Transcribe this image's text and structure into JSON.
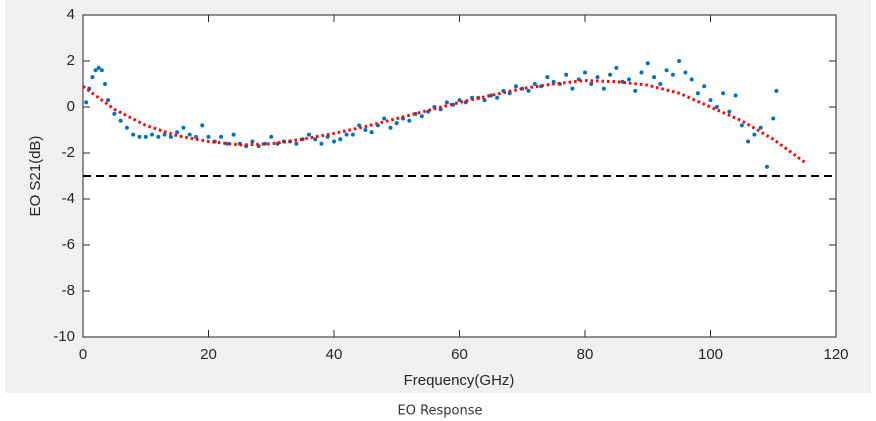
{
  "chart_data": {
    "type": "scatter",
    "xlabel": "Frequency(GHz)",
    "ylabel": "EO S21(dB)",
    "xlim": [
      0,
      120
    ],
    "xticks": [
      0,
      20,
      40,
      60,
      80,
      100,
      120
    ],
    "ylim": [
      -10,
      4
    ],
    "yticks": [
      -10,
      -8,
      -6,
      -4,
      -2,
      0,
      2,
      4
    ],
    "hline": -3,
    "series": [
      {
        "color": "#0072bd",
        "x": [
          0.5,
          1,
          1.5,
          2,
          2.5,
          3,
          3.5,
          4,
          5,
          6,
          7,
          8,
          9,
          10,
          11,
          12,
          13,
          14,
          15,
          16,
          17,
          18,
          19,
          20,
          21,
          22,
          23,
          24,
          25,
          26,
          27,
          28,
          29,
          30,
          31,
          32,
          33,
          34,
          35,
          36,
          37,
          38,
          39,
          40,
          41,
          42,
          43,
          44,
          45,
          46,
          47,
          48,
          49,
          50,
          51,
          52,
          53,
          54,
          55,
          56,
          57,
          58,
          59,
          60,
          61,
          62,
          63,
          64,
          65,
          66,
          67,
          68,
          69,
          70,
          71,
          72,
          73,
          74,
          75,
          76,
          77,
          78,
          79,
          80,
          81,
          82,
          83,
          84,
          85,
          86,
          87,
          88,
          89,
          90,
          91,
          92,
          93,
          94,
          95,
          96,
          97,
          98,
          99,
          100,
          101,
          102,
          103,
          104,
          105,
          106,
          107,
          108,
          109,
          110,
          110.5
        ],
        "values": [
          0.2,
          0.8,
          1.3,
          1.6,
          1.7,
          1.6,
          1.0,
          0.3,
          -0.3,
          -0.6,
          -0.9,
          -1.2,
          -1.3,
          -1.3,
          -1.2,
          -1.3,
          -1.2,
          -1.3,
          -1.1,
          -0.9,
          -1.2,
          -1.3,
          -0.8,
          -1.3,
          -1.5,
          -1.3,
          -1.6,
          -1.2,
          -1.6,
          -1.7,
          -1.5,
          -1.7,
          -1.6,
          -1.3,
          -1.6,
          -1.5,
          -1.5,
          -1.6,
          -1.4,
          -1.2,
          -1.4,
          -1.6,
          -1.3,
          -1.5,
          -1.4,
          -1.2,
          -1.2,
          -0.8,
          -1.0,
          -1.1,
          -0.8,
          -0.5,
          -0.9,
          -0.7,
          -0.5,
          -0.6,
          -0.3,
          -0.4,
          -0.2,
          0.0,
          -0.1,
          0.2,
          0.1,
          0.3,
          0.2,
          0.4,
          0.4,
          0.3,
          0.5,
          0.4,
          0.7,
          0.6,
          0.9,
          0.8,
          0.7,
          1.0,
          0.9,
          1.3,
          1.1,
          1.0,
          1.4,
          0.8,
          1.2,
          1.5,
          1.0,
          1.3,
          0.8,
          1.4,
          1.7,
          1.1,
          1.2,
          0.7,
          1.5,
          1.9,
          1.3,
          1.0,
          1.6,
          1.4,
          2.0,
          1.5,
          1.2,
          0.6,
          0.9,
          0.3,
          0.0,
          0.6,
          -0.2,
          0.5,
          -0.8,
          -1.5,
          -1.2,
          -0.9,
          -2.6,
          -0.5,
          0.7
        ]
      },
      {
        "color": "#ff0000",
        "line": "dotted",
        "x": [
          0,
          5,
          10,
          15,
          20,
          25,
          30,
          35,
          40,
          45,
          50,
          55,
          60,
          65,
          70,
          75,
          80,
          85,
          90,
          95,
          100,
          105,
          110,
          115
        ],
        "values": [
          0.9,
          -0.1,
          -0.8,
          -1.25,
          -1.5,
          -1.65,
          -1.6,
          -1.4,
          -1.15,
          -0.85,
          -0.5,
          -0.15,
          0.2,
          0.5,
          0.8,
          1.0,
          1.15,
          1.1,
          0.95,
          0.6,
          0.0,
          -0.6,
          -1.4,
          -2.4
        ]
      }
    ]
  },
  "caption": "EO Response"
}
